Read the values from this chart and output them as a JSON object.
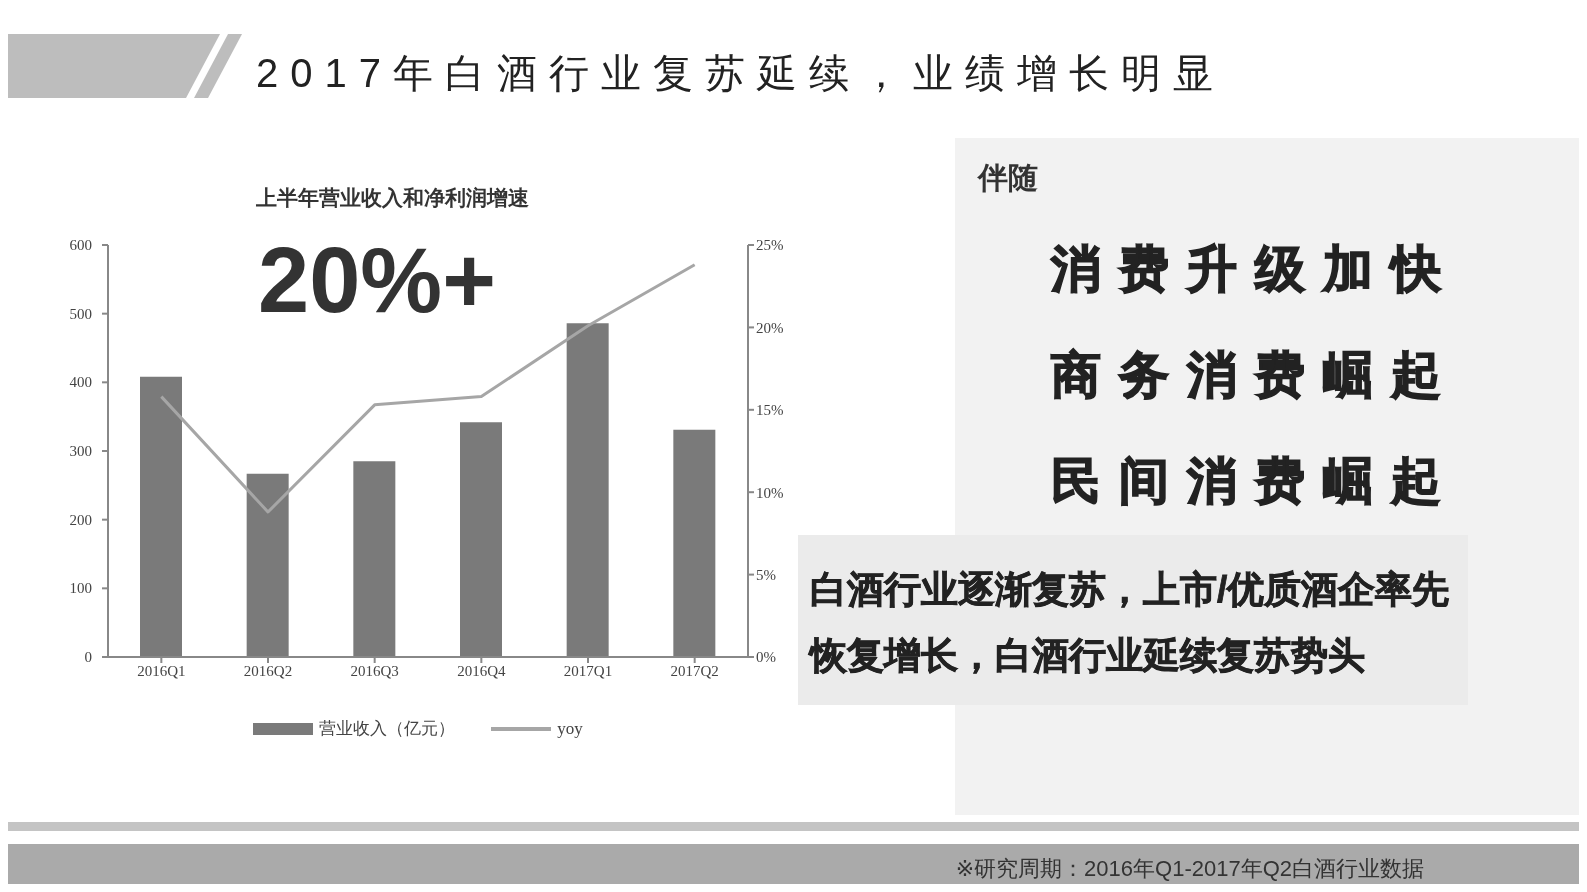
{
  "chart_data": {
    "type": "bar",
    "title": "2017年白酒行业复苏延续，业绩增长明显",
    "subtitle": "上半年营业收入和净利润增速",
    "categories": [
      "2016Q1",
      "2016Q2",
      "2016Q3",
      "2016Q4",
      "2017Q1",
      "2017Q2"
    ],
    "series": [
      {
        "name": "营业收入（亿元）",
        "color": "#7a7a7a",
        "values": [
          408,
          267,
          285,
          342,
          486,
          331
        ]
      },
      {
        "name": "yoy",
        "type": "line",
        "axis": "y2",
        "color": "#a6a6a6",
        "values": [
          15.8,
          8.8,
          15.3,
          15.8,
          20.1,
          23.8
        ]
      }
    ],
    "ylim": [
      0,
      600
    ],
    "yticks": [
      0,
      100,
      200,
      300,
      400,
      500,
      600
    ],
    "y2lim": [
      0,
      25
    ],
    "y2ticks": [
      {
        "value": 0,
        "label": "0%"
      },
      {
        "value": 5,
        "label": "5%"
      },
      {
        "value": 10,
        "label": "10%"
      },
      {
        "value": 15,
        "label": "15%"
      },
      {
        "value": 20,
        "label": "20%"
      },
      {
        "value": 25,
        "label": "25%"
      }
    ],
    "grid": false,
    "legend": "bottom",
    "marker": "none",
    "annotations": [
      "20%+",
      "伴随",
      "消费升级加快",
      "商务消费崛起",
      "民间消费崛起",
      "白酒行业逐渐复苏，上市/优质酒企率先恢复增长，白酒行业延续复苏势头",
      "※研究周期：2016年Q1-2017年Q2白酒行业数据"
    ]
  }
}
